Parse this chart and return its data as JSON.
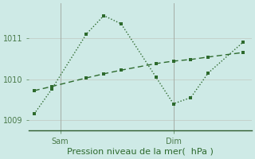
{
  "line1_x": [
    0,
    1,
    3,
    4,
    5,
    7,
    8,
    9,
    10,
    12
  ],
  "line1_y": [
    1009.15,
    1009.75,
    1011.1,
    1011.55,
    1011.35,
    1010.05,
    1009.4,
    1009.55,
    1010.15,
    1010.9
  ],
  "line2_x": [
    0,
    1,
    3,
    4,
    5,
    7,
    8,
    9,
    10,
    12
  ],
  "line2_y": [
    1009.72,
    1009.82,
    1010.03,
    1010.13,
    1010.22,
    1010.38,
    1010.44,
    1010.48,
    1010.54,
    1010.65
  ],
  "color": "#2d6a2d",
  "bg_color": "#ceeae6",
  "grid_color": "#c0c8c0",
  "xlabel": "Pression niveau de la mer(  hPa )",
  "yticks": [
    1009,
    1010,
    1011
  ],
  "sam_x": 1.5,
  "dim_x": 8.0,
  "xmin": -0.3,
  "xmax": 12.5,
  "ymin": 1008.75,
  "ymax": 1011.85
}
